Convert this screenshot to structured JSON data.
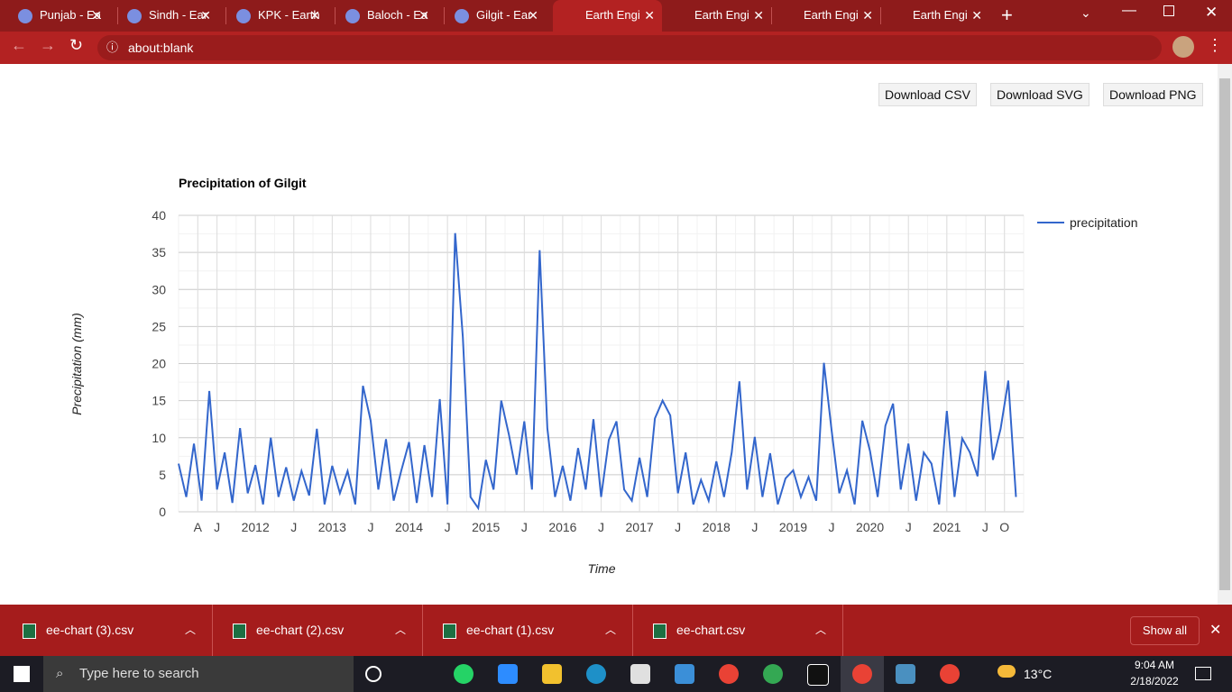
{
  "browser": {
    "tabs": [
      "Punjab - Ea",
      "Sindh - Ear",
      "KPK - Earth",
      "Baloch - Ea",
      "Gilgit - Ear",
      "Earth Engi",
      "Earth Engi",
      "Earth Engi",
      "Earth Engi"
    ],
    "url": "about:blank"
  },
  "buttons": [
    "Download CSV",
    "Download SVG",
    "Download PNG"
  ],
  "downloads": {
    "files": [
      "ee-chart (3).csv",
      "ee-chart (2).csv",
      "ee-chart (1).csv",
      "ee-chart.csv"
    ],
    "show_all": "Show all"
  },
  "taskbar": {
    "search": "Type here to search",
    "weather": "13°C",
    "time": "9:04 AM",
    "date": "2/18/2022"
  },
  "chart_data": {
    "type": "line",
    "title": "Precipitation of Gilgit",
    "x_label": "Time",
    "y_label": "Precipitation (mm)",
    "xlim": [
      2011,
      2022
    ],
    "xticks": [
      {
        "value": 2011.25,
        "label": "A"
      },
      {
        "value": 2011.5,
        "label": "J"
      },
      2012,
      {
        "value": 2012.5,
        "label": "J"
      },
      2013,
      {
        "value": 2013.5,
        "label": "J"
      },
      2014,
      {
        "value": 2014.5,
        "label": "J"
      },
      2015,
      {
        "value": 2015.5,
        "label": "J"
      },
      2016,
      {
        "value": 2016.5,
        "label": "J"
      },
      2017,
      {
        "value": 2017.5,
        "label": "J"
      },
      2018,
      {
        "value": 2018.5,
        "label": "J"
      },
      2019,
      {
        "value": 2019.5,
        "label": "J"
      },
      2020,
      {
        "value": 2020.5,
        "label": "J"
      },
      2021,
      {
        "value": 2021.5,
        "label": "J"
      },
      {
        "value": 2021.75,
        "label": "O"
      }
    ],
    "ylim": [
      0,
      40
    ],
    "yticks": [
      0,
      5,
      10,
      15,
      20,
      25,
      30,
      35,
      40
    ],
    "grid": true,
    "legend": "right",
    "series": [
      {
        "name": "precipitation",
        "color": "#3366cc",
        "x": [
          2011.0,
          2011.1,
          2011.2,
          2011.3,
          2011.4,
          2011.5,
          2011.6,
          2011.7,
          2011.8,
          2011.9,
          2012.0,
          2012.1,
          2012.2,
          2012.3,
          2012.4,
          2012.5,
          2012.6,
          2012.7,
          2012.8,
          2012.9,
          2013.0,
          2013.1,
          2013.2,
          2013.3,
          2013.4,
          2013.5,
          2013.6,
          2013.7,
          2013.8,
          2013.9,
          2014.0,
          2014.1,
          2014.2,
          2014.3,
          2014.4,
          2014.5,
          2014.6,
          2014.7,
          2014.8,
          2014.9,
          2015.0,
          2015.1,
          2015.2,
          2015.3,
          2015.4,
          2015.5,
          2015.6,
          2015.7,
          2015.8,
          2015.9,
          2016.0,
          2016.1,
          2016.2,
          2016.3,
          2016.4,
          2016.5,
          2016.6,
          2016.7,
          2016.8,
          2016.9,
          2017.0,
          2017.1,
          2017.2,
          2017.3,
          2017.4,
          2017.5,
          2017.6,
          2017.7,
          2017.8,
          2017.9,
          2018.0,
          2018.1,
          2018.2,
          2018.3,
          2018.4,
          2018.5,
          2018.6,
          2018.7,
          2018.8,
          2018.9,
          2019.0,
          2019.1,
          2019.2,
          2019.3,
          2019.4,
          2019.5,
          2019.6,
          2019.7,
          2019.8,
          2019.9,
          2020.0,
          2020.1,
          2020.2,
          2020.3,
          2020.4,
          2020.5,
          2020.6,
          2020.7,
          2020.8,
          2020.9,
          2021.0,
          2021.1,
          2021.2,
          2021.3,
          2021.4,
          2021.5,
          2021.6,
          2021.7,
          2021.8,
          2021.9
        ],
        "values": [
          6.5,
          2.0,
          9.2,
          1.5,
          16.3,
          3.0,
          8.0,
          1.2,
          11.3,
          2.5,
          6.3,
          1.0,
          10.0,
          2.0,
          6.0,
          1.5,
          5.5,
          2.2,
          11.2,
          1.0,
          6.2,
          2.5,
          5.5,
          1.0,
          17.0,
          12.3,
          3.0,
          9.8,
          1.5,
          5.6,
          9.4,
          1.2,
          9.0,
          2.0,
          15.2,
          1.0,
          37.6,
          23.6,
          2.0,
          0.5,
          7.0,
          3.0,
          15.0,
          10.4,
          5.0,
          12.2,
          3.0,
          35.3,
          11.3,
          2.0,
          6.2,
          1.5,
          8.6,
          3.0,
          12.5,
          2.0,
          9.7,
          12.2,
          3.0,
          1.5,
          7.3,
          2.0,
          12.6,
          15.0,
          13.0,
          2.5,
          8.0,
          1.0,
          4.3,
          1.5,
          6.8,
          2.0,
          8.0,
          17.6,
          3.0,
          10.1,
          2.0,
          7.9,
          1.0,
          4.5,
          5.6,
          2.0,
          4.7,
          1.5,
          20.1,
          11.0,
          2.5,
          5.6,
          1.0,
          12.3,
          8.2,
          2.0,
          11.6,
          14.6,
          3.0,
          9.2,
          1.5,
          8.0,
          6.5,
          1.0,
          13.6,
          2.0,
          9.9,
          8.0,
          4.8,
          19.0,
          7.0,
          11.2,
          17.7,
          2.0
        ]
      }
    ]
  }
}
